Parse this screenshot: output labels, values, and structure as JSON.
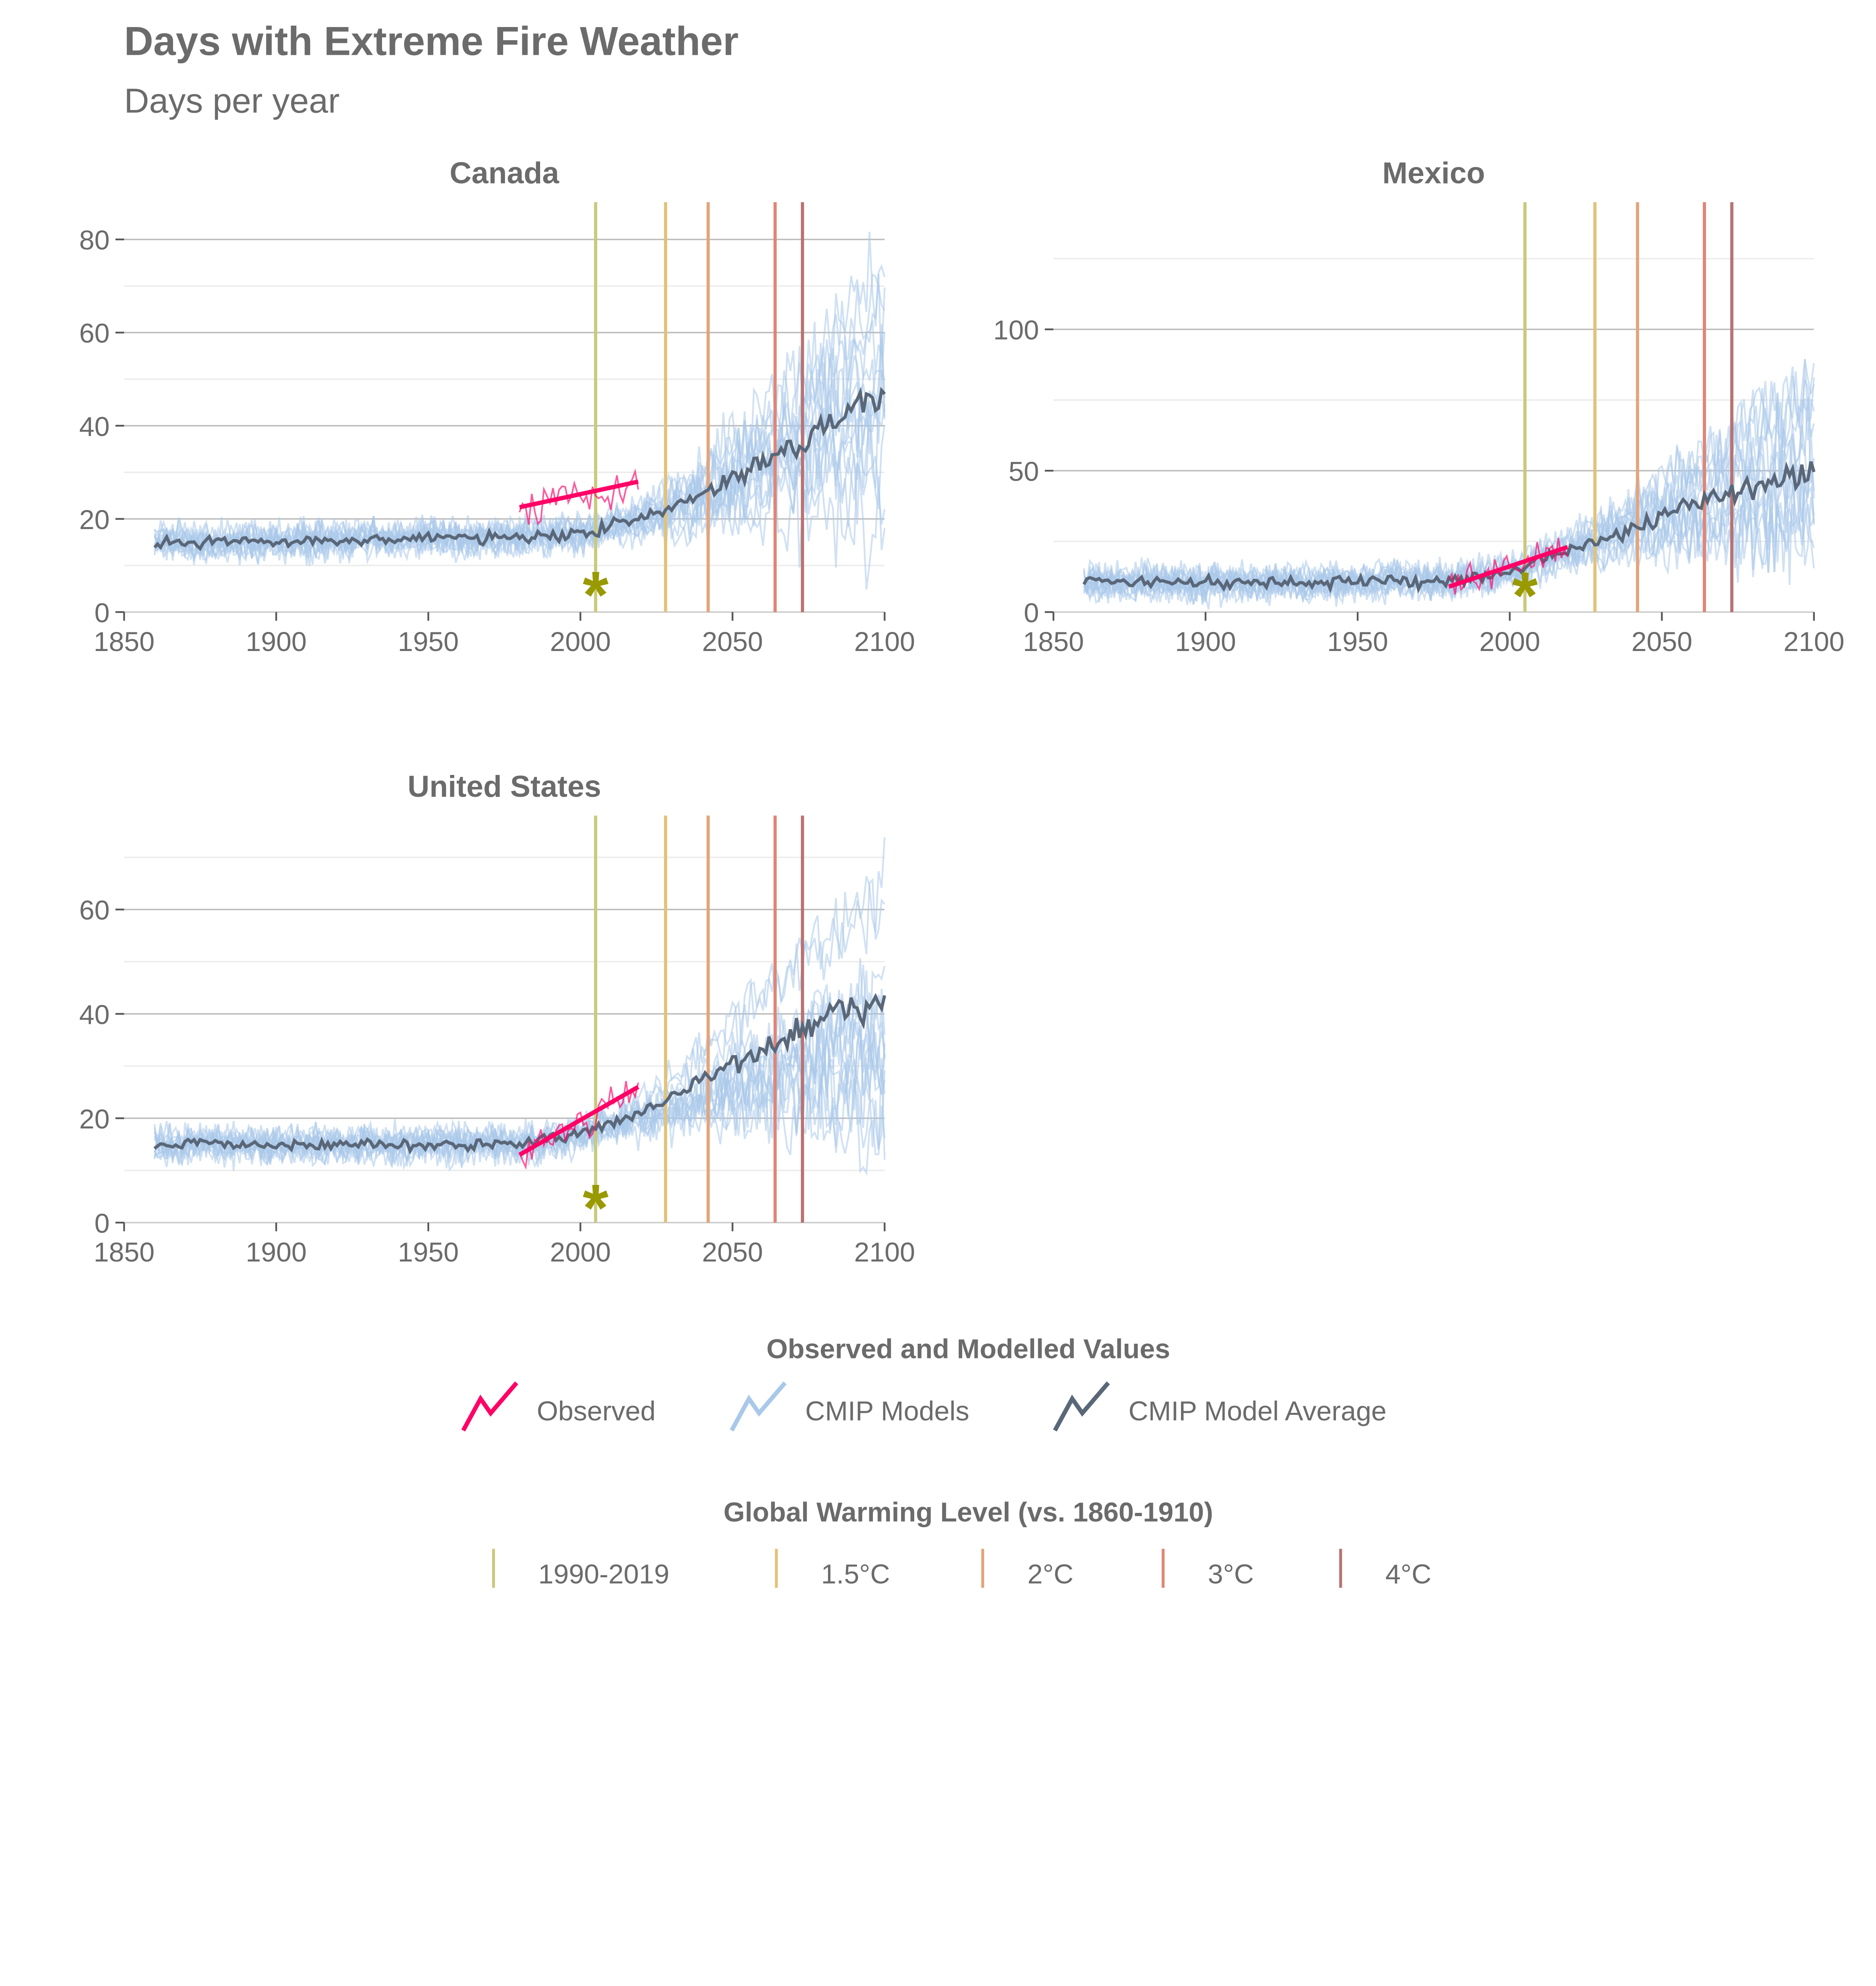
{
  "chart_data": {
    "type": "line",
    "title": "Days with Extreme Fire Weather",
    "subtitle": "Days per year",
    "x_ticks": [
      "1850",
      "1900",
      "1950",
      "2000",
      "2050",
      "2100"
    ],
    "xlim": [
      1850,
      2100
    ],
    "colors": {
      "observed": "#ff0066",
      "models": "#a9c8ea",
      "average": "#5a6778",
      "star": "#999900"
    },
    "warming_levels": [
      {
        "label": "1990-2019",
        "year": 2005,
        "color": "#c9c97c"
      },
      {
        "label": "1.5°C",
        "year": 2028,
        "color": "#e2c277"
      },
      {
        "label": "2°C",
        "year": 2042,
        "color": "#e3a47a"
      },
      {
        "label": "3°C",
        "year": 2064,
        "color": "#e08575"
      },
      {
        "label": "4°C",
        "year": 2073,
        "color": "#b87272"
      }
    ],
    "panels": [
      {
        "name": "Canada",
        "ylim": [
          0,
          88
        ],
        "y_ticks": [
          "0",
          "20",
          "40",
          "60",
          "80"
        ],
        "y_tick_values": [
          0,
          20,
          40,
          60,
          80
        ],
        "minor": [
          10,
          30,
          50,
          70
        ],
        "average_anchor_years": [
          1860,
          1900,
          1950,
          1980,
          2000,
          2020,
          2040,
          2060,
          2080,
          2100
        ],
        "average_anchor_values": [
          15,
          15,
          16,
          16,
          17,
          20,
          25,
          32,
          40,
          48
        ],
        "observed_trend": {
          "start": [
            1980,
            22.5
          ],
          "end": [
            2019,
            28
          ]
        },
        "star": [
          2005,
          5
        ]
      },
      {
        "name": "Mexico",
        "ylim": [
          0,
          145
        ],
        "y_ticks": [
          "0",
          "50",
          "100"
        ],
        "y_tick_values": [
          0,
          50,
          100
        ],
        "minor": [
          25,
          75,
          125
        ],
        "average_anchor_years": [
          1860,
          1900,
          1950,
          1980,
          2000,
          2020,
          2040,
          2060,
          2080,
          2100
        ],
        "average_anchor_values": [
          11,
          10,
          11,
          11,
          14,
          22,
          30,
          38,
          45,
          50
        ],
        "observed_trend": {
          "start": [
            1980,
            9
          ],
          "end": [
            2019,
            23
          ]
        },
        "star": [
          2005,
          8
        ]
      },
      {
        "name": "United States",
        "ylim": [
          0,
          78
        ],
        "y_ticks": [
          "0",
          "20",
          "40",
          "60"
        ],
        "y_tick_values": [
          0,
          20,
          40,
          60
        ],
        "minor": [
          10,
          30,
          50,
          70
        ],
        "average_anchor_years": [
          1860,
          1900,
          1950,
          1980,
          2000,
          2020,
          2040,
          2060,
          2080,
          2100
        ],
        "average_anchor_values": [
          15,
          15,
          15,
          15,
          17,
          21,
          27,
          33,
          40,
          43
        ],
        "observed_trend": {
          "start": [
            1980,
            13
          ],
          "end": [
            2019,
            26
          ]
        },
        "star": [
          2005,
          4
        ]
      }
    ],
    "legend1": {
      "title": "Observed and Modelled Values",
      "items": [
        "Observed",
        "CMIP Models",
        "CMIP Model Average"
      ]
    },
    "legend2": {
      "title": "Global Warming Level (vs. 1860-1910)"
    }
  }
}
